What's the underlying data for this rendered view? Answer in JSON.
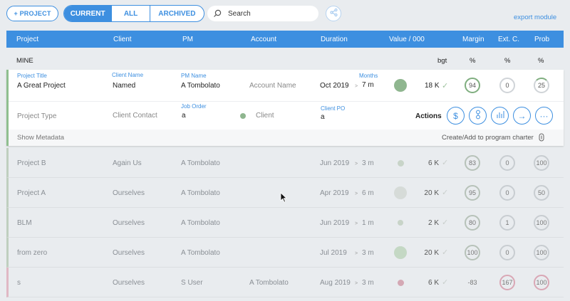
{
  "toolbar": {
    "new_project": "+ PROJECT",
    "tabs": [
      "CURRENT",
      "ALL",
      "ARCHIVED"
    ],
    "search_placeholder": "Search",
    "export_label": "export module"
  },
  "table": {
    "headers": [
      "Project",
      "Client",
      "PM",
      "Account",
      "Duration",
      "Value / 000",
      "Margin",
      "Ext. C.",
      "Prob"
    ],
    "group_label": "MINE",
    "sub_units": {
      "value": "bgt",
      "margin": "%",
      "ext": "%",
      "prob": "%"
    }
  },
  "selected": {
    "project_title_label": "Project Title",
    "project_title": "A Great Project",
    "client_name_label": "Client Name",
    "client_name": "Named",
    "pm_name_label": "PM Name",
    "pm_name": "A Tombolato",
    "account_name": "Account Name",
    "start": "Oct 2019",
    "months_label": "Months",
    "duration": "7 m",
    "value": "18 K",
    "margin": "94",
    "ext": "0",
    "prob": "25",
    "project_type": "Project Type",
    "client_contact": "Client Contact",
    "job_order_label": "Job Order",
    "job_order": "a",
    "client_status": "Client",
    "client_po_label": "Client PO",
    "client_po": "a",
    "actions_label": "Actions",
    "show_metadata": "Show Metadata",
    "charter_link": "Create/Add to program charter"
  },
  "rows": [
    {
      "project": "Project B",
      "client": "Again Us",
      "pm": "A Tombolato",
      "account": "",
      "start": "Jun 2019",
      "duration": "3 m",
      "value": "6 K",
      "margin": "83",
      "ext": "0",
      "prob": "100",
      "dot": "#c8d4c8",
      "dot_size": 9,
      "color": "#bfcfbf"
    },
    {
      "project": "Project A",
      "client": "Ourselves",
      "pm": "A Tombolato",
      "account": "",
      "start": "Apr 2019",
      "duration": "6 m",
      "value": "20 K",
      "margin": "95",
      "ext": "0",
      "prob": "50",
      "dot": "#d6dbd8",
      "dot_size": 18,
      "color": "#bfcfbf"
    },
    {
      "project": "BLM",
      "client": "Ourselves",
      "pm": "A Tombolato",
      "account": "",
      "start": "Jun 2019",
      "duration": "1 m",
      "value": "2 K",
      "margin": "80",
      "ext": "1",
      "prob": "100",
      "dot": "#c8d4c8",
      "dot_size": 8,
      "color": "#bfcfbf"
    },
    {
      "project": "from zero",
      "client": "Ourselves",
      "pm": "A Tombolato",
      "account": "",
      "start": "Jul 2019",
      "duration": "3 m",
      "value": "20 K",
      "margin": "100",
      "ext": "0",
      "prob": "100",
      "dot": "#c4d8c4",
      "dot_size": 18,
      "color": "#bfcfbf"
    },
    {
      "project": "s",
      "client": "Ourselves",
      "pm": "S User",
      "account": "A Tombolato",
      "start": "Aug 2019",
      "duration": "3 m",
      "value": "6 K",
      "margin": "-83",
      "ext": "167",
      "prob": "100",
      "dot": "#d4a8b4",
      "dot_size": 9,
      "color": "#e0b8c4"
    }
  ]
}
